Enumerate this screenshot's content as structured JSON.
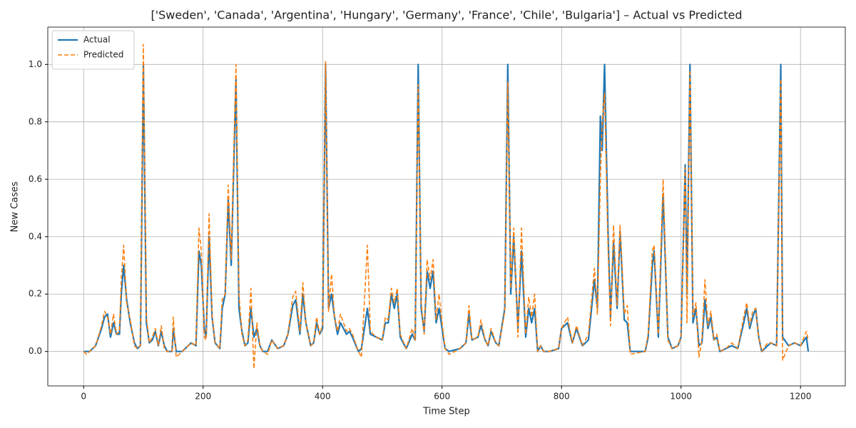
{
  "chart_data": {
    "type": "line",
    "title": "['Sweden', 'Canada', 'Argentina', 'Hungary', 'Germany', 'France', 'Chile', 'Bulgaria'] – Actual vs Predicted",
    "xlabel": "Time Step",
    "ylabel": "New Cases",
    "x": [
      0,
      5,
      10,
      20,
      30,
      35,
      40,
      45,
      50,
      55,
      60,
      63,
      67,
      72,
      78,
      85,
      90,
      95,
      100,
      105,
      110,
      115,
      120,
      125,
      130,
      135,
      140,
      148,
      150,
      155,
      165,
      170,
      180,
      188,
      193,
      197,
      202,
      205,
      210,
      215,
      220,
      228,
      232,
      237,
      242,
      247,
      255,
      260,
      265,
      270,
      275,
      280,
      285,
      290,
      295,
      300,
      308,
      315,
      325,
      335,
      342,
      350,
      355,
      362,
      367,
      372,
      380,
      385,
      390,
      395,
      400,
      405,
      410,
      415,
      420,
      425,
      430,
      440,
      445,
      450,
      460,
      465,
      475,
      480,
      490,
      500,
      505,
      510,
      515,
      520,
      525,
      530,
      540,
      550,
      555,
      560,
      565,
      570,
      575,
      580,
      585,
      590,
      595,
      600,
      605,
      612,
      630,
      640,
      645,
      650,
      660,
      665,
      672,
      677,
      682,
      690,
      695,
      705,
      710,
      715,
      720,
      727,
      733,
      740,
      745,
      750,
      755,
      760,
      765,
      770,
      780,
      795,
      800,
      810,
      818,
      825,
      835,
      845,
      855,
      860,
      865,
      868,
      872,
      878,
      882,
      887,
      893,
      898,
      905,
      910,
      915,
      940,
      945,
      952,
      955,
      962,
      970,
      978,
      985,
      995,
      1000,
      1007,
      1010,
      1015,
      1020,
      1025,
      1030,
      1035,
      1040,
      1045,
      1050,
      1055,
      1060,
      1065,
      1075,
      1085,
      1095,
      1105,
      1110,
      1115,
      1120,
      1125,
      1130,
      1135,
      1145,
      1150,
      1160,
      1167,
      1170,
      1180,
      1190,
      1200,
      1210,
      1213
    ],
    "series": [
      {
        "name": "Actual",
        "color": "#1f77b4",
        "linestyle": "solid",
        "width": 2.2,
        "values": [
          0,
          0,
          0,
          0.02,
          0.08,
          0.12,
          0.13,
          0.05,
          0.1,
          0.06,
          0.06,
          0.2,
          0.3,
          0.18,
          0.1,
          0.03,
          0.01,
          0.02,
          1.0,
          0.1,
          0.03,
          0.04,
          0.07,
          0.02,
          0.07,
          0.02,
          0,
          0,
          0.08,
          0,
          0,
          0.01,
          0.03,
          0.02,
          0.35,
          0.3,
          0.08,
          0.05,
          0.4,
          0.12,
          0.03,
          0.01,
          0.15,
          0.2,
          0.53,
          0.3,
          0.95,
          0.15,
          0.07,
          0.02,
          0.03,
          0.15,
          0.05,
          0.08,
          0.02,
          0,
          0,
          0.04,
          0.01,
          0.02,
          0.06,
          0.16,
          0.18,
          0.06,
          0.2,
          0.1,
          0.02,
          0.03,
          0.1,
          0.06,
          0.08,
          1.0,
          0.15,
          0.2,
          0.12,
          0.06,
          0.1,
          0.06,
          0.07,
          0.05,
          0,
          0.01,
          0.15,
          0.06,
          0.05,
          0.04,
          0.1,
          0.1,
          0.2,
          0.15,
          0.2,
          0.05,
          0.01,
          0.06,
          0.04,
          1.0,
          0.15,
          0.07,
          0.28,
          0.22,
          0.28,
          0.1,
          0.15,
          0.08,
          0.01,
          0,
          0.01,
          0.03,
          0.13,
          0.04,
          0.05,
          0.09,
          0.04,
          0.02,
          0.07,
          0.03,
          0.02,
          0.15,
          1.0,
          0.2,
          0.4,
          0.08,
          0.35,
          0.05,
          0.15,
          0.1,
          0.15,
          0,
          0.02,
          0,
          0,
          0.01,
          0.08,
          0.1,
          0.03,
          0.08,
          0.02,
          0.04,
          0.25,
          0.15,
          0.82,
          0.7,
          1.0,
          0.4,
          0.12,
          0.38,
          0.15,
          0.42,
          0.11,
          0.1,
          0,
          0,
          0.05,
          0.3,
          0.35,
          0.05,
          0.55,
          0.05,
          0.01,
          0.02,
          0.05,
          0.65,
          0.2,
          1.0,
          0.1,
          0.15,
          0.02,
          0.03,
          0.18,
          0.08,
          0.12,
          0.04,
          0.05,
          0,
          0.01,
          0.02,
          0.01,
          0.1,
          0.15,
          0.08,
          0.12,
          0.15,
          0.05,
          0,
          0.02,
          0.03,
          0.02,
          1.0,
          0.05,
          0.02,
          0.03,
          0.02,
          0.05,
          0
        ]
      },
      {
        "name": "Predicted",
        "color": "#ff7f0e",
        "linestyle": "dashed",
        "width": 1.6,
        "values": [
          0,
          -0.01,
          0,
          0.02,
          0.09,
          0.14,
          0.12,
          0.06,
          0.13,
          0.06,
          0.07,
          0.25,
          0.37,
          0.17,
          0.11,
          0.02,
          0.01,
          0.02,
          1.07,
          0.12,
          0.03,
          0.05,
          0.08,
          0.02,
          0.09,
          0.01,
          0,
          0,
          0.12,
          -0.02,
          0,
          0.01,
          0.03,
          0.02,
          0.43,
          0.35,
          0.05,
          0.04,
          0.48,
          0.13,
          0.03,
          0.01,
          0.18,
          0.2,
          0.58,
          0.32,
          1.0,
          0.2,
          0.06,
          0.02,
          0.04,
          0.22,
          -0.06,
          0.1,
          0.02,
          0,
          -0.01,
          0.04,
          0.01,
          0.02,
          0.06,
          0.19,
          0.21,
          0.07,
          0.24,
          0.1,
          0.02,
          0.03,
          0.12,
          0.06,
          0.09,
          1.01,
          0.14,
          0.27,
          0.12,
          0.07,
          0.13,
          0.07,
          0.08,
          0.06,
          0,
          -0.02,
          0.37,
          0.07,
          0.05,
          0.04,
          0.12,
          0.11,
          0.22,
          0.17,
          0.22,
          0.06,
          0.01,
          0.08,
          0.04,
          0.93,
          0.17,
          0.06,
          0.32,
          0.25,
          0.32,
          0.11,
          0.2,
          0.1,
          0.01,
          -0.01,
          0.01,
          0.03,
          0.16,
          0.04,
          0.05,
          0.11,
          0.04,
          0.02,
          0.08,
          0.03,
          0.02,
          0.14,
          0.94,
          0.22,
          0.43,
          0.05,
          0.43,
          0.06,
          0.19,
          0.12,
          0.2,
          0,
          0.02,
          0,
          0,
          0.01,
          0.08,
          0.12,
          0.03,
          0.09,
          0.02,
          0.06,
          0.29,
          0.13,
          0.6,
          0.8,
          0.9,
          0.35,
          0.09,
          0.44,
          0.16,
          0.44,
          0.13,
          0.16,
          -0.01,
          0,
          0.06,
          0.35,
          0.37,
          0.06,
          0.6,
          0.04,
          0.01,
          0.02,
          0.05,
          0.64,
          0.1,
          0.98,
          0.12,
          0.17,
          -0.02,
          0.04,
          0.25,
          0.09,
          0.14,
          0.04,
          0.06,
          0,
          0.01,
          0.03,
          0.01,
          0.12,
          0.17,
          0.09,
          0.14,
          0.15,
          0.05,
          0,
          0.03,
          0.03,
          0.02,
          0.95,
          -0.03,
          0.02,
          0.03,
          0.02,
          0.07,
          0.04
        ]
      }
    ],
    "xlim": [
      -60,
      1275
    ],
    "ylim": [
      -0.12,
      1.13
    ],
    "xticks": [
      0,
      200,
      400,
      600,
      800,
      1000,
      1200
    ],
    "yticks": [
      {
        "value": 0,
        "label": "0.0"
      },
      0.2,
      0.4,
      0.6,
      0.8,
      {
        "value": 1,
        "label": "1.0"
      }
    ],
    "grid": true,
    "legend": "upper-left"
  }
}
